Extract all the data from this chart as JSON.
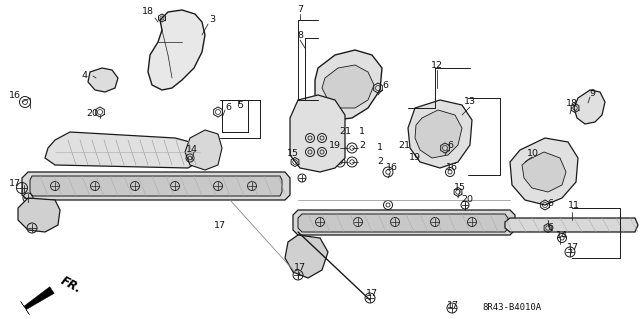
{
  "bg_color": "#ffffff",
  "diagram_code": "8R43-B4010A",
  "fr_label": "FR.",
  "line_color": "#1a1a1a",
  "text_color": "#111111",
  "font_size_labels": 7.0,
  "font_size_code": 6.5,
  "label_positions": [
    [
      "18",
      148,
      13
    ],
    [
      "3",
      210,
      22
    ],
    [
      "16",
      18,
      98
    ],
    [
      "4",
      88,
      78
    ],
    [
      "20",
      95,
      118
    ],
    [
      "6",
      222,
      112
    ],
    [
      "5",
      237,
      108
    ],
    [
      "7",
      300,
      12
    ],
    [
      "8",
      300,
      38
    ],
    [
      "6",
      380,
      88
    ],
    [
      "12",
      435,
      68
    ],
    [
      "9",
      590,
      95
    ],
    [
      "19",
      345,
      152
    ],
    [
      "21",
      355,
      138
    ],
    [
      "1",
      370,
      138
    ],
    [
      "2",
      370,
      152
    ],
    [
      "21",
      408,
      152
    ],
    [
      "19",
      418,
      162
    ],
    [
      "1",
      385,
      152
    ],
    [
      "2",
      385,
      162
    ],
    [
      "13",
      468,
      105
    ],
    [
      "6",
      445,
      148
    ],
    [
      "16",
      390,
      172
    ],
    [
      "10",
      530,
      155
    ],
    [
      "18",
      568,
      105
    ],
    [
      "15",
      455,
      188
    ],
    [
      "20",
      462,
      202
    ],
    [
      "16",
      450,
      172
    ],
    [
      "6",
      555,
      205
    ],
    [
      "11",
      570,
      215
    ],
    [
      "14",
      192,
      152
    ],
    [
      "17",
      18,
      183
    ],
    [
      "17",
      218,
      228
    ],
    [
      "14",
      558,
      235
    ],
    [
      "17",
      570,
      248
    ],
    [
      "17",
      298,
      270
    ],
    [
      "17",
      368,
      295
    ],
    [
      "17",
      452,
      303
    ],
    [
      "6",
      546,
      230
    ],
    [
      "15",
      295,
      155
    ]
  ]
}
